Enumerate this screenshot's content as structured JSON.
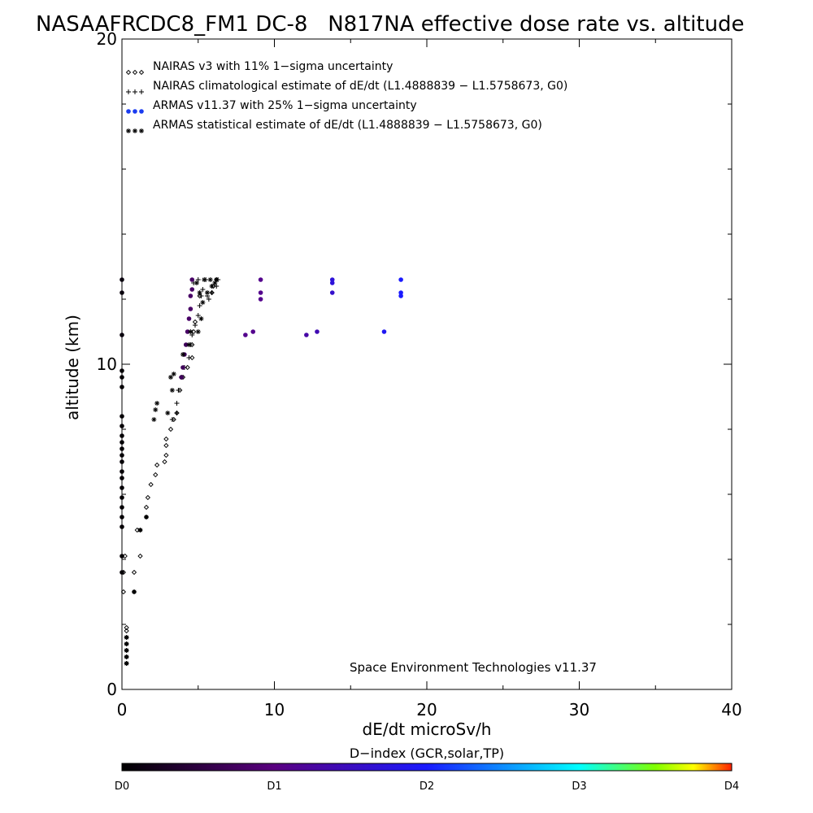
{
  "chart_data": {
    "type": "scatter",
    "title": "NASAAFRCDC8_FM1 DC-8   N817NA effective dose rate vs. altitude",
    "xlabel": "dE/dt microSv/h",
    "ylabel": "altitude (km)",
    "xlim": [
      0,
      40
    ],
    "ylim": [
      0,
      20
    ],
    "x_ticks": [
      "0",
      "10",
      "20",
      "30",
      "40"
    ],
    "y_ticks": [
      "0",
      "10",
      "20"
    ],
    "legend_position": "top-left",
    "footer": "Space Environment Technologies v11.37",
    "colorbar": {
      "title": "D−index (GCR,solar,TP)",
      "labels": [
        {
          "text": "D0",
          "value": 0
        },
        {
          "text": "D1",
          "value": 1
        },
        {
          "text": "D2",
          "value": 2
        },
        {
          "text": "D3",
          "value": 3
        },
        {
          "text": "D4",
          "value": 4
        }
      ],
      "stops": [
        {
          "value": 0,
          "color": "#000000"
        },
        {
          "value": 1,
          "color": "#5a0080"
        },
        {
          "value": 2,
          "color": "#1a1aff"
        },
        {
          "value": 3,
          "color": "#00ffff"
        },
        {
          "value": 3.5,
          "color": "#80ff00"
        },
        {
          "value": 3.75,
          "color": "#ffff00"
        },
        {
          "value": 4,
          "color": "#ff2000"
        }
      ]
    },
    "series": [
      {
        "name": "NAIRAS v3 with 11% 1−sigma uncertainty",
        "marker": "diamond",
        "points": [
          [
            0.3,
            0.8
          ],
          [
            0.3,
            1.0
          ],
          [
            0.3,
            1.2
          ],
          [
            0.3,
            1.4
          ],
          [
            0.3,
            1.6
          ],
          [
            0.3,
            1.8
          ],
          [
            0.3,
            1.9
          ],
          [
            0.1,
            3.0
          ],
          [
            0.1,
            3.6
          ],
          [
            0.8,
            3.0
          ],
          [
            0.8,
            3.6
          ],
          [
            1.2,
            4.1
          ],
          [
            0.2,
            4.1
          ],
          [
            1.2,
            4.9
          ],
          [
            1.0,
            4.9
          ],
          [
            1.6,
            5.3
          ],
          [
            1.6,
            5.6
          ],
          [
            1.7,
            5.9
          ],
          [
            1.9,
            6.3
          ],
          [
            2.2,
            6.6
          ],
          [
            2.3,
            6.9
          ],
          [
            2.8,
            7.0
          ],
          [
            2.9,
            7.2
          ],
          [
            2.9,
            7.5
          ],
          [
            2.9,
            7.7
          ],
          [
            3.2,
            8.0
          ],
          [
            3.4,
            8.3
          ],
          [
            3.6,
            8.5
          ],
          [
            3.8,
            9.2
          ],
          [
            4.0,
            9.6
          ],
          [
            4.3,
            9.9
          ],
          [
            4.6,
            10.2
          ],
          [
            4.6,
            10.6
          ],
          [
            4.7,
            11.0
          ],
          [
            4.8,
            11.3
          ],
          [
            5.1,
            12.1
          ],
          [
            5.9,
            12.2
          ],
          [
            6.0,
            12.4
          ],
          [
            6.2,
            12.6
          ]
        ]
      },
      {
        "name": "NAIRAS climatological estimate of dE/dt (L1.4888839 − L1.5758673, G0)",
        "marker": "plus",
        "points": [
          [
            3.3,
            8.3
          ],
          [
            3.6,
            8.5
          ],
          [
            3.6,
            8.8
          ],
          [
            3.7,
            9.2
          ],
          [
            3.9,
            9.6
          ],
          [
            4.1,
            9.9
          ],
          [
            4.4,
            10.2
          ],
          [
            4.5,
            10.6
          ],
          [
            4.6,
            10.9
          ],
          [
            4.8,
            11.2
          ],
          [
            5.0,
            11.5
          ],
          [
            5.1,
            11.8
          ],
          [
            5.2,
            12.1
          ],
          [
            5.6,
            12.1
          ],
          [
            5.9,
            12.2
          ],
          [
            5.9,
            12.4
          ],
          [
            6.2,
            12.4
          ],
          [
            6.3,
            12.6
          ],
          [
            5.5,
            12.6
          ],
          [
            5.0,
            12.6
          ],
          [
            4.7,
            12.5
          ],
          [
            5.3,
            12.3
          ],
          [
            5.7,
            12.0
          ]
        ]
      },
      {
        "name": "ARMAS v11.37 with 25% 1−sigma uncertainty",
        "marker": "dot",
        "points": [
          {
            "x": 0.0,
            "y": 12.6,
            "d": 0.1
          },
          {
            "x": 0.0,
            "y": 12.2,
            "d": 0.1
          },
          {
            "x": 0.0,
            "y": 10.9,
            "d": 0.1
          },
          {
            "x": 0.0,
            "y": 9.8,
            "d": 0.05
          },
          {
            "x": 0.0,
            "y": 9.6,
            "d": 0.05
          },
          {
            "x": 0.0,
            "y": 9.3,
            "d": 0.05
          },
          {
            "x": 0.0,
            "y": 8.4,
            "d": 0.05
          },
          {
            "x": 0.0,
            "y": 8.1,
            "d": 0.05
          },
          {
            "x": 0.0,
            "y": 7.8,
            "d": 0.05
          },
          {
            "x": 0.0,
            "y": 7.6,
            "d": 0.05
          },
          {
            "x": 0.0,
            "y": 7.4,
            "d": 0.05
          },
          {
            "x": 0.0,
            "y": 7.2,
            "d": 0.05
          },
          {
            "x": 0.0,
            "y": 7.0,
            "d": 0.05
          },
          {
            "x": 0.0,
            "y": 6.7,
            "d": 0.05
          },
          {
            "x": 0.0,
            "y": 6.5,
            "d": 0.05
          },
          {
            "x": 0.0,
            "y": 6.2,
            "d": 0.05
          },
          {
            "x": 0.0,
            "y": 5.9,
            "d": 0.05
          },
          {
            "x": 0.0,
            "y": 5.6,
            "d": 0.05
          },
          {
            "x": 0.0,
            "y": 5.3,
            "d": 0.05
          },
          {
            "x": 0.0,
            "y": 5.0,
            "d": 0.05
          },
          {
            "x": 0.0,
            "y": 4.1,
            "d": 0.05
          },
          {
            "x": 0.0,
            "y": 3.6,
            "d": 0.05
          },
          {
            "x": 3.9,
            "y": 9.6,
            "d": 0.7
          },
          {
            "x": 4.0,
            "y": 9.9,
            "d": 0.7
          },
          {
            "x": 4.1,
            "y": 10.3,
            "d": 0.7
          },
          {
            "x": 4.2,
            "y": 10.6,
            "d": 0.7
          },
          {
            "x": 4.3,
            "y": 11.0,
            "d": 0.8
          },
          {
            "x": 4.4,
            "y": 11.4,
            "d": 0.8
          },
          {
            "x": 4.5,
            "y": 11.7,
            "d": 0.8
          },
          {
            "x": 4.5,
            "y": 12.1,
            "d": 0.8
          },
          {
            "x": 4.6,
            "y": 12.3,
            "d": 0.8
          },
          {
            "x": 4.6,
            "y": 12.6,
            "d": 0.8
          },
          {
            "x": 8.1,
            "y": 10.9,
            "d": 1.1
          },
          {
            "x": 8.6,
            "y": 11.0,
            "d": 1.1
          },
          {
            "x": 9.1,
            "y": 12.0,
            "d": 1.1
          },
          {
            "x": 9.1,
            "y": 12.2,
            "d": 1.1
          },
          {
            "x": 9.1,
            "y": 12.6,
            "d": 1.1
          },
          {
            "x": 12.1,
            "y": 10.9,
            "d": 1.3
          },
          {
            "x": 12.8,
            "y": 11.0,
            "d": 1.4
          },
          {
            "x": 13.8,
            "y": 12.2,
            "d": 1.6
          },
          {
            "x": 13.8,
            "y": 12.5,
            "d": 1.7
          },
          {
            "x": 13.8,
            "y": 12.6,
            "d": 1.7
          },
          {
            "x": 17.2,
            "y": 11.0,
            "d": 1.9
          },
          {
            "x": 18.3,
            "y": 12.1,
            "d": 2.0
          },
          {
            "x": 18.3,
            "y": 12.2,
            "d": 2.0
          },
          {
            "x": 18.3,
            "y": 12.6,
            "d": 2.0
          }
        ]
      },
      {
        "name": "ARMAS statistical estimate of dE/dt (L1.4888839 − L1.5758673, G0)",
        "marker": "asterisk",
        "points": [
          [
            0.3,
            0.8
          ],
          [
            0.3,
            1.0
          ],
          [
            0.3,
            1.2
          ],
          [
            0.3,
            1.4
          ],
          [
            0.3,
            1.6
          ],
          [
            0.8,
            3.0
          ],
          [
            1.2,
            4.9
          ],
          [
            1.6,
            5.3
          ],
          [
            2.1,
            8.3
          ],
          [
            2.2,
            8.6
          ],
          [
            2.3,
            8.8
          ],
          [
            3.0,
            8.5
          ],
          [
            3.3,
            9.2
          ],
          [
            3.2,
            9.6
          ],
          [
            3.4,
            9.7
          ],
          [
            4.0,
            10.3
          ],
          [
            4.4,
            10.6
          ],
          [
            4.5,
            11.0
          ],
          [
            5.0,
            11.0
          ],
          [
            5.2,
            11.4
          ],
          [
            5.3,
            11.9
          ],
          [
            5.6,
            12.2
          ],
          [
            5.9,
            12.4
          ],
          [
            6.1,
            12.5
          ],
          [
            6.2,
            12.6
          ],
          [
            5.8,
            12.6
          ],
          [
            5.4,
            12.6
          ],
          [
            4.9,
            12.5
          ],
          [
            5.1,
            12.2
          ]
        ]
      }
    ]
  }
}
